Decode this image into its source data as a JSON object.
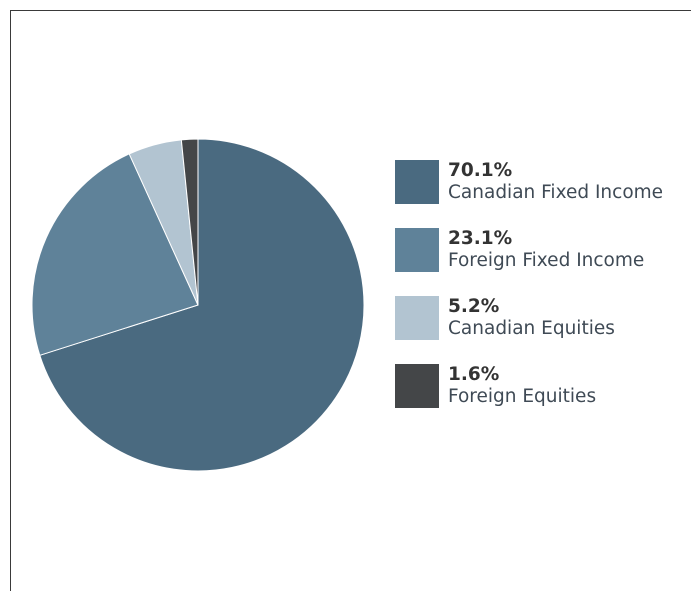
{
  "chart_data": {
    "type": "pie",
    "title": "",
    "slices": [
      {
        "label": "Canadian Fixed Income",
        "value": 70.1,
        "display": "70.1%",
        "color": "#4a6a80"
      },
      {
        "label": "Foreign Fixed Income",
        "value": 23.1,
        "display": "23.1%",
        "color": "#5f8299"
      },
      {
        "label": "Canadian Equities",
        "value": 5.2,
        "display": "5.2%",
        "color": "#b2c4d1"
      },
      {
        "label": "Foreign Equities",
        "value": 1.6,
        "display": "1.6%",
        "color": "#444648"
      }
    ],
    "start_angle_deg": 0,
    "direction": "clockwise",
    "legend_position": "right"
  }
}
